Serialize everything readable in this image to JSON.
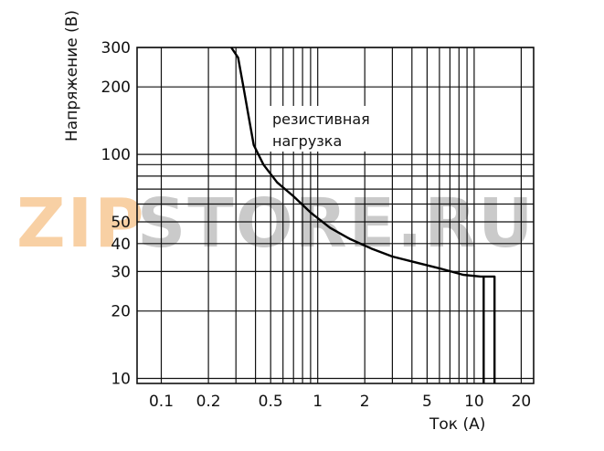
{
  "chart_data": {
    "type": "line",
    "xscale": "log",
    "yscale": "log",
    "xlim": [
      0.07,
      24
    ],
    "ylim": [
      9.5,
      300
    ],
    "xlabel": "Ток (А)",
    "ylabel": "Напряжение (В)",
    "x_ticks": [
      0.1,
      0.2,
      0.5,
      1,
      2,
      5,
      10,
      20
    ],
    "x_tick_labels": [
      "0.1",
      "0.2",
      "0.5",
      "1",
      "2",
      "5",
      "10",
      "20"
    ],
    "y_ticks": [
      10,
      20,
      30,
      40,
      50,
      100,
      200,
      300
    ],
    "y_tick_labels": [
      "10",
      "20",
      "30",
      "40",
      "50",
      "100",
      "200",
      "300"
    ],
    "x_grid": [
      0.1,
      0.2,
      0.3,
      0.4,
      0.5,
      0.6,
      0.7,
      0.8,
      0.9,
      1,
      2,
      3,
      4,
      5,
      6,
      7,
      8,
      9,
      10,
      20
    ],
    "y_grid": [
      10,
      20,
      30,
      40,
      50,
      60,
      70,
      80,
      90,
      100,
      200,
      300
    ],
    "grid": true,
    "annotation": [
      "резистивная",
      "нагрузка"
    ],
    "series": [
      {
        "x": [
          0.28,
          0.31,
          0.335,
          0.36,
          0.39,
          0.45,
          0.55,
          0.7,
          0.9,
          1.2,
          1.6,
          2.2,
          3.0,
          4.2,
          6.0,
          8.5,
          11.0,
          13.5,
          13.5
        ],
        "y": [
          300,
          270,
          200,
          150,
          110,
          90,
          75,
          65,
          55,
          47,
          42,
          38,
          35,
          33,
          31,
          29,
          28.5,
          28.5,
          9.5
        ]
      },
      {
        "x": [
          11.5,
          11.5
        ],
        "y": [
          28.5,
          9.5
        ]
      }
    ]
  },
  "watermark": {
    "part1": "ZIP",
    "part2": "STORE.RU",
    "color1": "#f4b169",
    "color2": "#a8a8a8"
  }
}
